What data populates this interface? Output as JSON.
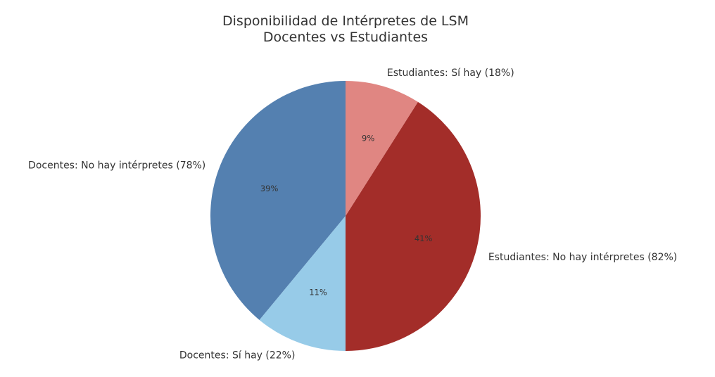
{
  "chart": {
    "title_line1": "Disponibilidad de Intérpretes de LSM",
    "title_line2": "Docentes vs Estudiantes"
  },
  "chart_data": {
    "type": "pie",
    "title": "Disponibilidad de Intérpretes de LSM\nDocentes vs Estudiantes",
    "start_angle": 90,
    "direction": "counterclockwise",
    "categories": [
      "Docentes: No hay intérpretes (78%)",
      "Docentes: Sí hay (22%)",
      "Estudiantes: No hay intérpretes (82%)",
      "Estudiantes: Sí hay (18%)"
    ],
    "values": [
      39,
      11,
      41,
      9
    ],
    "pct_labels": [
      "39%",
      "11%",
      "41%",
      "9%"
    ],
    "colors": [
      "#5480b0",
      "#97cbe8",
      "#a32d29",
      "#e08682"
    ],
    "groups": {
      "Docentes": {
        "No hay intérpretes": 78,
        "Sí hay": 22
      },
      "Estudiantes": {
        "No hay intérpretes": 82,
        "Sí hay": 18
      }
    },
    "legend": "none"
  }
}
